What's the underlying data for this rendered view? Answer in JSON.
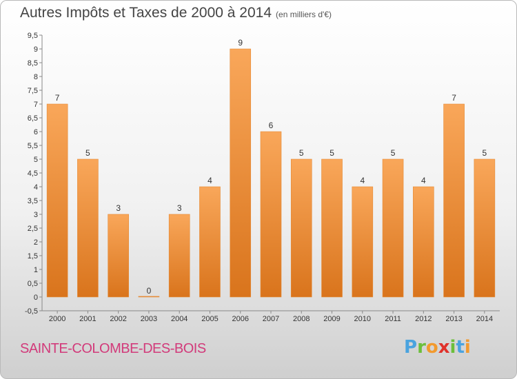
{
  "title": "Autres Impôts et Taxes de 2000 à 2014",
  "subtitle": "(en milliers d'€)",
  "place": "SAINTE-COLOMBE-DES-BOIS",
  "logo": {
    "letters": [
      "P",
      "r",
      "o",
      "x",
      "i",
      "t",
      "i"
    ],
    "colors": [
      "#4aa3df",
      "#6cbf3b",
      "#f29a2e",
      "#e0322b",
      "#6cbf3b",
      "#4aa3df",
      "#f29a2e"
    ]
  },
  "colors": {
    "bar_light": "#f9a75a",
    "bar_dark": "#d9741c",
    "axis": "#888888",
    "grid": "#dddddd"
  },
  "chart_data": {
    "type": "bar",
    "title": "Autres Impôts et Taxes de 2000 à 2014",
    "subtitle": "(en milliers d'€)",
    "categories": [
      "2000",
      "2001",
      "2002",
      "2003",
      "2004",
      "2005",
      "2006",
      "2007",
      "2008",
      "2009",
      "2010",
      "2011",
      "2012",
      "2013",
      "2014"
    ],
    "values": [
      7,
      5,
      3,
      0,
      3,
      4,
      9,
      6,
      5,
      5,
      4,
      5,
      4,
      7,
      5
    ],
    "ylim": [
      -0.5,
      9.5
    ],
    "yticks": [
      "-0,5",
      "0",
      "0,5",
      "1",
      "1,5",
      "2",
      "2,5",
      "3",
      "3,5",
      "4",
      "4,5",
      "5",
      "5,5",
      "6",
      "6,5",
      "7",
      "7,5",
      "8",
      "8,5",
      "9",
      "9,5"
    ],
    "grid": false,
    "data_labels": true
  }
}
